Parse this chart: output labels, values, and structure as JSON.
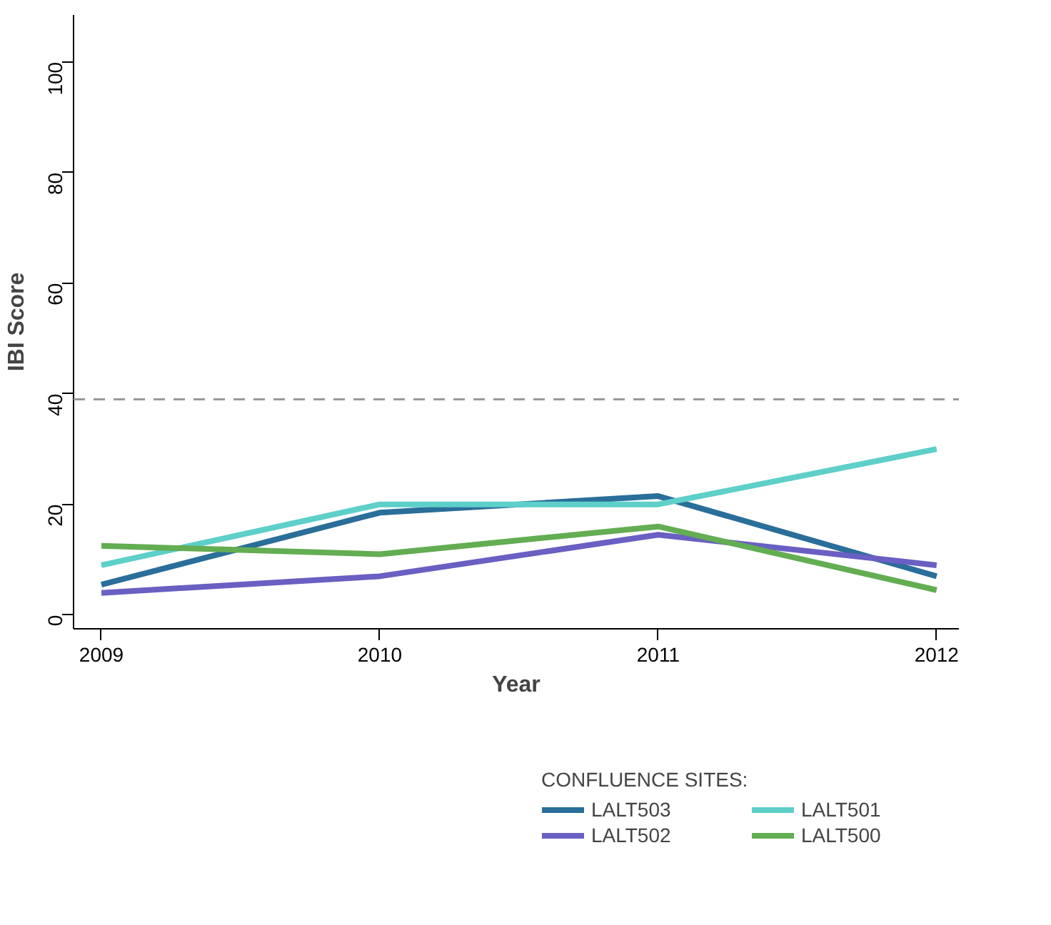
{
  "chart_data": {
    "type": "line",
    "xlabel": "Year",
    "ylabel": "IBI Score",
    "legend_title": "CONFLUENCE SITES:",
    "x": [
      2009,
      2010,
      2011,
      2012
    ],
    "series": [
      {
        "name": "LALT503",
        "color": "#2a6e9a",
        "values": [
          5.5,
          18.5,
          21.5,
          7
        ]
      },
      {
        "name": "LALT501",
        "color": "#5ecfc9",
        "values": [
          9,
          20,
          20,
          30
        ]
      },
      {
        "name": "LALT502",
        "color": "#6a5fc2",
        "values": [
          4,
          7,
          14.5,
          9
        ]
      },
      {
        "name": "LALT500",
        "color": "#63ad53",
        "values": [
          12.5,
          11,
          16,
          4.5
        ]
      }
    ],
    "xlim": [
      2008.9,
      2012.08
    ],
    "ylim": [
      -2.5,
      108.5
    ],
    "xticks": [
      2009,
      2010,
      2011,
      2012
    ],
    "yticks": [
      0,
      20,
      40,
      60,
      80,
      100
    ],
    "ref_lines": [
      {
        "axis": "y",
        "value": 39,
        "color": "#999999",
        "line_style": "dashed"
      }
    ],
    "grid": false,
    "legend": "bottom",
    "marker": "none",
    "line_style": "solid"
  }
}
